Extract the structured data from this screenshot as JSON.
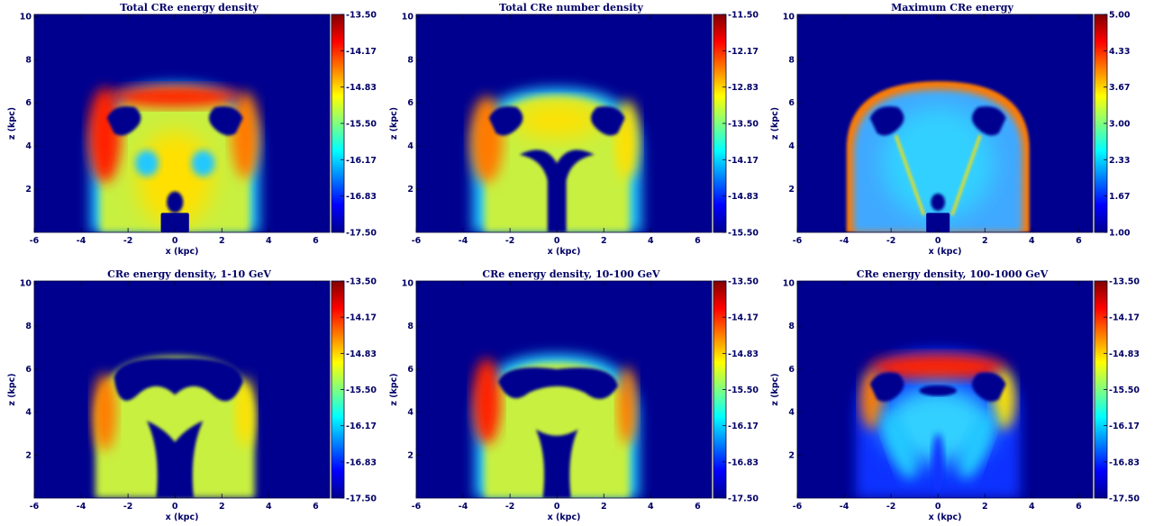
{
  "chart_data": [
    {
      "type": "heatmap",
      "title": "Total CRe energy density",
      "xlabel": "x (kpc)",
      "ylabel": "z (kpc)",
      "xlim": [
        -6,
        6.6
      ],
      "ylim": [
        0,
        10.1
      ],
      "x_ticks": [
        "-6",
        "-4",
        "-2",
        "0",
        "2",
        "4",
        "6"
      ],
      "y_ticks": [
        "2",
        "4",
        "6",
        "8",
        "10"
      ],
      "colorbar": {
        "min": -17.5,
        "max": -13.5,
        "ticks": [
          "-13.50",
          "-14.17",
          "-14.83",
          "-15.50",
          "-16.17",
          "-16.83",
          "-17.50"
        ]
      },
      "colormap": "jet",
      "pattern": "shell"
    },
    {
      "type": "heatmap",
      "title": "Total CRe number density",
      "xlabel": "x (kpc)",
      "ylabel": "z (kpc)",
      "xlim": [
        -6,
        6.6
      ],
      "ylim": [
        0,
        10.1
      ],
      "x_ticks": [
        "-6",
        "-4",
        "-2",
        "0",
        "2",
        "4",
        "6"
      ],
      "y_ticks": [
        "2",
        "4",
        "6",
        "8",
        "10"
      ],
      "colorbar": {
        "min": -15.5,
        "max": -11.5,
        "ticks": [
          "-11.50",
          "-12.17",
          "-12.83",
          "-13.50",
          "-14.17",
          "-14.83",
          "-15.50"
        ]
      },
      "colormap": "jet",
      "pattern": "number"
    },
    {
      "type": "heatmap",
      "title": "Maximum CRe energy",
      "xlabel": "x (kpc)",
      "ylabel": "z (kpc)",
      "xlim": [
        -6,
        6.6
      ],
      "ylim": [
        0,
        10.1
      ],
      "x_ticks": [
        "-6",
        "-4",
        "-2",
        "0",
        "2",
        "4",
        "6"
      ],
      "y_ticks": [
        "2",
        "4",
        "6",
        "8",
        "10"
      ],
      "colorbar": {
        "min": 1.0,
        "max": 5.0,
        "ticks": [
          "5.00",
          "4.33",
          "3.67",
          "3.00",
          "2.33",
          "1.67",
          "1.00"
        ]
      },
      "colormap": "jet",
      "pattern": "maxE"
    },
    {
      "type": "heatmap",
      "title": "CRe energy density, 1-10 GeV",
      "xlabel": "x (kpc)",
      "ylabel": "z (kpc)",
      "xlim": [
        -6,
        6.6
      ],
      "ylim": [
        0,
        10.1
      ],
      "x_ticks": [
        "-6",
        "-4",
        "-2",
        "0",
        "2",
        "4",
        "6"
      ],
      "y_ticks": [
        "2",
        "4",
        "6",
        "8",
        "10"
      ],
      "colorbar": {
        "min": -17.5,
        "max": -13.5,
        "ticks": [
          "-13.50",
          "-14.17",
          "-14.83",
          "-15.50",
          "-16.17",
          "-16.83",
          "-17.50"
        ]
      },
      "colormap": "jet",
      "pattern": "low"
    },
    {
      "type": "heatmap",
      "title": "CRe energy density, 10-100 GeV",
      "xlabel": "x (kpc)",
      "ylabel": "z (kpc)",
      "xlim": [
        -6,
        6.6
      ],
      "ylim": [
        0,
        10.1
      ],
      "x_ticks": [
        "-6",
        "-4",
        "-2",
        "0",
        "2",
        "4",
        "6"
      ],
      "y_ticks": [
        "2",
        "4",
        "6",
        "8",
        "10"
      ],
      "colorbar": {
        "min": -17.5,
        "max": -13.5,
        "ticks": [
          "-13.50",
          "-14.17",
          "-14.83",
          "-15.50",
          "-16.17",
          "-16.83",
          "-17.50"
        ]
      },
      "colormap": "jet",
      "pattern": "mid"
    },
    {
      "type": "heatmap",
      "title": "CRe energy density, 100-1000 GeV",
      "xlabel": "x (kpc)",
      "ylabel": "z (kpc)",
      "xlim": [
        -6,
        6.6
      ],
      "ylim": [
        0,
        10.1
      ],
      "x_ticks": [
        "-6",
        "-4",
        "-2",
        "0",
        "2",
        "4",
        "6"
      ],
      "y_ticks": [
        "2",
        "4",
        "6",
        "8",
        "10"
      ],
      "colorbar": {
        "min": -17.5,
        "max": -13.5,
        "ticks": [
          "-13.50",
          "-14.17",
          "-14.83",
          "-15.50",
          "-16.17",
          "-16.83",
          "-17.50"
        ]
      },
      "colormap": "jet",
      "pattern": "high"
    }
  ]
}
